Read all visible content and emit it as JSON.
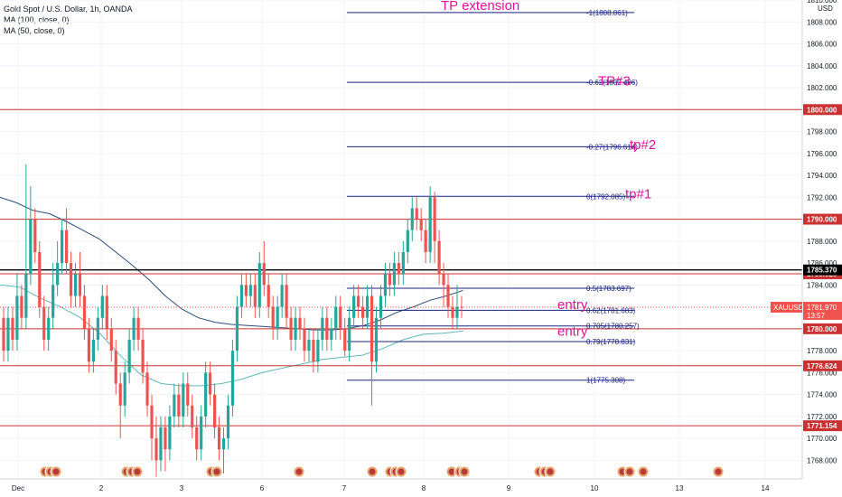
{
  "legend": {
    "title": "Gold Spot / U.S. Dollar, 1h, OANDA",
    "ma1": "MA (100, close, 0)",
    "ma2": "MA (50, close, 0)"
  },
  "chart_data": {
    "type": "candlestick",
    "symbol": "XAUUSD",
    "currency": "USD",
    "ylim": [
      1766.3,
      1810.0
    ],
    "y_ticks": [
      1768,
      1770,
      1772,
      1774,
      1776,
      1778,
      1780,
      1782,
      1784,
      1786,
      1788,
      1790,
      1792,
      1794,
      1796,
      1798,
      1800,
      1802,
      1804,
      1806,
      1808,
      1810
    ],
    "x_ticks": [
      "Dec",
      "2",
      "3",
      "6",
      "7",
      "8",
      "9",
      "10",
      "13",
      "14"
    ],
    "horizontal_lines": [
      {
        "price": 1800.0,
        "label": "1800.000"
      },
      {
        "price": 1790.0,
        "label": "1790.000"
      },
      {
        "price": 1785.02,
        "label": "1785.020"
      },
      {
        "price": 1780.0,
        "label": "1780.000"
      },
      {
        "price": 1776.624,
        "label": "1776.624"
      },
      {
        "price": 1771.154,
        "label": "1771.154"
      }
    ],
    "black_line": {
      "price": 1785.37,
      "label": "1785.370"
    },
    "current_price": {
      "price": 1781.97,
      "label": "XAUUSD",
      "value": "1781.970",
      "countdown": "13:57"
    },
    "fib_levels": [
      {
        "price": 1808.861,
        "label": "-1(1808.861)"
      },
      {
        "price": 1802.486,
        "label": "-0.62(1802.486)"
      },
      {
        "price": 1796.614,
        "label": "-0.27(1796.614)"
      },
      {
        "price": 1792.085,
        "label": "0(1792.085)"
      },
      {
        "price": 1783.697,
        "label": "0.5(1783.697)"
      },
      {
        "price": 1781.683,
        "label": "0.62(1781.683)"
      },
      {
        "price": 1780.257,
        "label": "0.705(1780.257)"
      },
      {
        "price": 1778.831,
        "label": "0.79(1778.831)"
      },
      {
        "price": 1775.308,
        "label": "1(1775.308)"
      }
    ],
    "annotations": [
      {
        "text": "TP extension",
        "price": 1809.5
      },
      {
        "text": "TP#3",
        "price": 1802.6
      },
      {
        "text": "tp#2",
        "price": 1796.8
      },
      {
        "text": "tp#1",
        "price": 1792.3
      },
      {
        "text": "entry",
        "price": 1782.2
      },
      {
        "text": "entry",
        "price": 1779.8
      }
    ],
    "ma100": [
      1792.0,
      1791.5,
      1790.8,
      1790.5,
      1789.8,
      1789.0,
      1788.2,
      1787.0,
      1785.8,
      1784.5,
      1783.0,
      1781.8,
      1781.0,
      1780.6,
      1780.4,
      1780.3,
      1780.2,
      1780.1,
      1780.0,
      1779.9,
      1779.9,
      1780.0,
      1780.3,
      1780.8,
      1781.5,
      1782.0,
      1782.6,
      1783.0,
      1783.5
    ],
    "ma50": [
      1784.0,
      1783.8,
      1782.8,
      1782.0,
      1781.0,
      1779.5,
      1777.5,
      1775.8,
      1775.0,
      1774.8,
      1774.8,
      1775.0,
      1775.4,
      1776.0,
      1776.4,
      1776.8,
      1777.2,
      1777.4,
      1777.6,
      1778.2,
      1779.0,
      1779.5,
      1779.6,
      1779.8
    ],
    "candles": [
      [
        1781,
        1778,
        1782,
        1777
      ],
      [
        1778,
        1781,
        1782,
        1777
      ],
      [
        1781,
        1779,
        1782,
        1778
      ],
      [
        1779,
        1783,
        1785,
        1778
      ],
      [
        1783,
        1781,
        1784,
        1780
      ],
      [
        1781,
        1785,
        1795,
        1780
      ],
      [
        1785,
        1790,
        1793,
        1784
      ],
      [
        1790,
        1787,
        1791,
        1786
      ],
      [
        1787,
        1782,
        1788,
        1781
      ],
      [
        1782,
        1779,
        1783,
        1778
      ],
      [
        1779,
        1781,
        1782,
        1778
      ],
      [
        1781,
        1784,
        1786,
        1780
      ],
      [
        1784,
        1786,
        1788,
        1783
      ],
      [
        1786,
        1789,
        1790,
        1785
      ],
      [
        1789,
        1786,
        1791,
        1785
      ],
      [
        1786,
        1783,
        1787,
        1782
      ],
      [
        1783,
        1785,
        1786,
        1782
      ],
      [
        1785,
        1783,
        1787,
        1782
      ],
      [
        1783,
        1780,
        1784,
        1779
      ],
      [
        1780,
        1777,
        1781,
        1776
      ],
      [
        1777,
        1779,
        1780,
        1776
      ],
      [
        1779,
        1781,
        1782,
        1778
      ],
      [
        1781,
        1783,
        1784,
        1780
      ],
      [
        1783,
        1780,
        1784,
        1779
      ],
      [
        1780,
        1778,
        1781,
        1777
      ],
      [
        1778,
        1775,
        1779,
        1774
      ],
      [
        1775,
        1773,
        1776,
        1770
      ],
      [
        1773,
        1776,
        1777,
        1772
      ],
      [
        1776,
        1779,
        1780,
        1775
      ],
      [
        1779,
        1781,
        1782,
        1778
      ],
      [
        1781,
        1779,
        1782,
        1778
      ],
      [
        1779,
        1776,
        1780,
        1775
      ],
      [
        1776,
        1773,
        1777,
        1772
      ],
      [
        1773,
        1770,
        1774,
        1768
      ],
      [
        1770,
        1768,
        1772,
        1766.5
      ],
      [
        1768,
        1771,
        1772,
        1767
      ],
      [
        1771,
        1769,
        1772,
        1767
      ],
      [
        1769,
        1772,
        1773,
        1768
      ],
      [
        1772,
        1774,
        1775,
        1771
      ],
      [
        1774,
        1772,
        1775,
        1771
      ],
      [
        1772,
        1775,
        1776,
        1771
      ],
      [
        1775,
        1773,
        1776,
        1772
      ],
      [
        1773,
        1771,
        1774,
        1770
      ],
      [
        1771,
        1769,
        1772,
        1768
      ],
      [
        1769,
        1772,
        1773,
        1768
      ],
      [
        1772,
        1776,
        1777,
        1771
      ],
      [
        1776,
        1774,
        1777,
        1773
      ],
      [
        1774,
        1771,
        1775,
        1770
      ],
      [
        1771,
        1769,
        1772,
        1768
      ],
      [
        1769,
        1770,
        1771,
        1766.8
      ],
      [
        1770,
        1773,
        1774,
        1769
      ],
      [
        1773,
        1778,
        1779,
        1772
      ],
      [
        1778,
        1782,
        1783,
        1777
      ],
      [
        1782,
        1784,
        1785,
        1781
      ],
      [
        1784,
        1783,
        1785,
        1782
      ],
      [
        1783,
        1784,
        1785,
        1782
      ],
      [
        1784,
        1782,
        1785,
        1781
      ],
      [
        1782,
        1786,
        1787,
        1781
      ],
      [
        1786,
        1784,
        1788,
        1783
      ],
      [
        1784,
        1782,
        1785,
        1781
      ],
      [
        1782,
        1780,
        1783,
        1779
      ],
      [
        1780,
        1782,
        1783,
        1779
      ],
      [
        1782,
        1784,
        1785,
        1781
      ],
      [
        1784,
        1781,
        1785,
        1780
      ],
      [
        1781,
        1779,
        1782,
        1778
      ],
      [
        1779,
        1781,
        1782,
        1778
      ],
      [
        1781,
        1780,
        1782,
        1779
      ],
      [
        1780,
        1778,
        1781,
        1777
      ],
      [
        1778,
        1779,
        1780,
        1777
      ],
      [
        1779,
        1777,
        1780,
        1776
      ],
      [
        1777,
        1779,
        1780,
        1776
      ],
      [
        1779,
        1781,
        1782,
        1778
      ],
      [
        1781,
        1779,
        1782,
        1778
      ],
      [
        1779,
        1780,
        1781,
        1778
      ],
      [
        1780,
        1782,
        1783,
        1779
      ],
      [
        1782,
        1780,
        1783,
        1779
      ],
      [
        1780,
        1778,
        1781,
        1777.5
      ],
      [
        1778,
        1781,
        1782,
        1777
      ],
      [
        1781,
        1783,
        1784,
        1780
      ],
      [
        1783,
        1782,
        1784,
        1781
      ],
      [
        1782,
        1781,
        1783,
        1780
      ],
      [
        1781,
        1783,
        1784,
        1780
      ],
      [
        1783,
        1777,
        1784,
        1773
      ],
      [
        1777,
        1781,
        1782,
        1776
      ],
      [
        1781,
        1783,
        1784,
        1780
      ],
      [
        1783,
        1785,
        1786,
        1782
      ],
      [
        1785,
        1784,
        1786,
        1783
      ],
      [
        1784,
        1786,
        1787,
        1783
      ],
      [
        1786,
        1785,
        1787,
        1784
      ],
      [
        1785,
        1787,
        1788,
        1784
      ],
      [
        1787,
        1789,
        1790,
        1786
      ],
      [
        1789,
        1791,
        1792,
        1788
      ],
      [
        1791,
        1790,
        1792,
        1789
      ],
      [
        1790,
        1789,
        1791,
        1788
      ],
      [
        1789,
        1787,
        1790,
        1786
      ],
      [
        1787,
        1792,
        1793,
        1786
      ],
      [
        1792,
        1788,
        1792.5,
        1786
      ],
      [
        1788,
        1785,
        1789,
        1784
      ],
      [
        1785,
        1784,
        1786,
        1782
      ],
      [
        1784,
        1782,
        1785,
        1781
      ],
      [
        1782,
        1781,
        1783,
        1780
      ],
      [
        1781,
        1782,
        1784,
        1780
      ],
      [
        1782,
        1781.97,
        1783,
        1781
      ]
    ]
  }
}
